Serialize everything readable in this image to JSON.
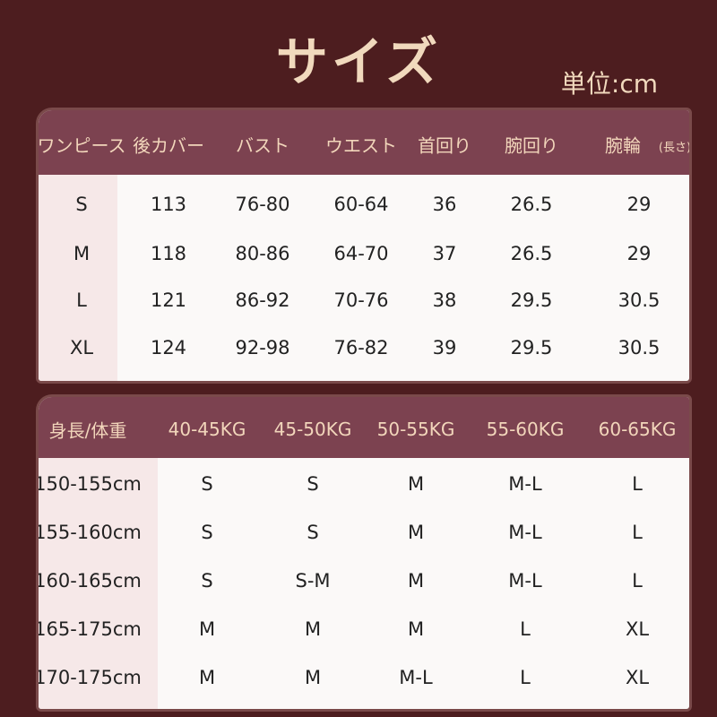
{
  "title": "サイズ",
  "unit": "単位:cm",
  "colors": {
    "background": "#4d1d1f",
    "header": "#7c4250",
    "header_text": "#f2d6bb",
    "first_column": "#f6e8e8"
  },
  "table1": {
    "headers": [
      "ワンピース",
      "後カバー",
      "バスト",
      "ウエスト",
      "首回り",
      "腕回り",
      "腕輪"
    ],
    "header_note": "(長さ)",
    "rows": [
      [
        "S",
        "113",
        "76-80",
        "60-64",
        "36",
        "26.5",
        "29"
      ],
      [
        "M",
        "118",
        "80-86",
        "64-70",
        "37",
        "26.5",
        "29"
      ],
      [
        "L",
        "121",
        "86-92",
        "70-76",
        "38",
        "29.5",
        "30.5"
      ],
      [
        "XL",
        "124",
        "92-98",
        "76-82",
        "39",
        "29.5",
        "30.5"
      ]
    ]
  },
  "table2": {
    "headers": [
      "身長/体重",
      "40-45KG",
      "45-50KG",
      "50-55KG",
      "55-60KG",
      "60-65KG"
    ],
    "rows": [
      [
        "150-155cm",
        "S",
        "S",
        "M",
        "M-L",
        "L"
      ],
      [
        "155-160cm",
        "S",
        "S",
        "M",
        "M-L",
        "L"
      ],
      [
        "160-165cm",
        "S",
        "S-M",
        "M",
        "M-L",
        "L"
      ],
      [
        "165-175cm",
        "M",
        "M",
        "M",
        "L",
        "XL"
      ],
      [
        "170-175cm",
        "M",
        "M",
        "M-L",
        "L",
        "XL"
      ]
    ]
  }
}
